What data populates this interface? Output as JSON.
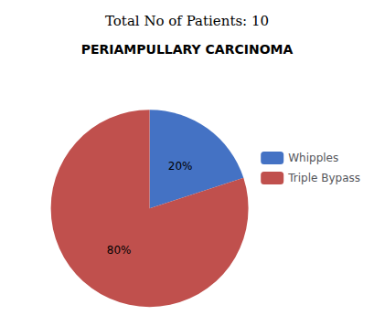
{
  "chart_data": {
    "type": "pie",
    "title": "PERIAMPULLARY CARCINOMA",
    "subtitle": "Total No of Patients: 10",
    "categories": [
      "Whipples",
      "Triple Bypass"
    ],
    "values": [
      20,
      80
    ],
    "value_labels": [
      "20%",
      "80%"
    ],
    "colors": [
      "#4472C4",
      "#C0504D"
    ],
    "data_labels": true,
    "legend": "right"
  }
}
